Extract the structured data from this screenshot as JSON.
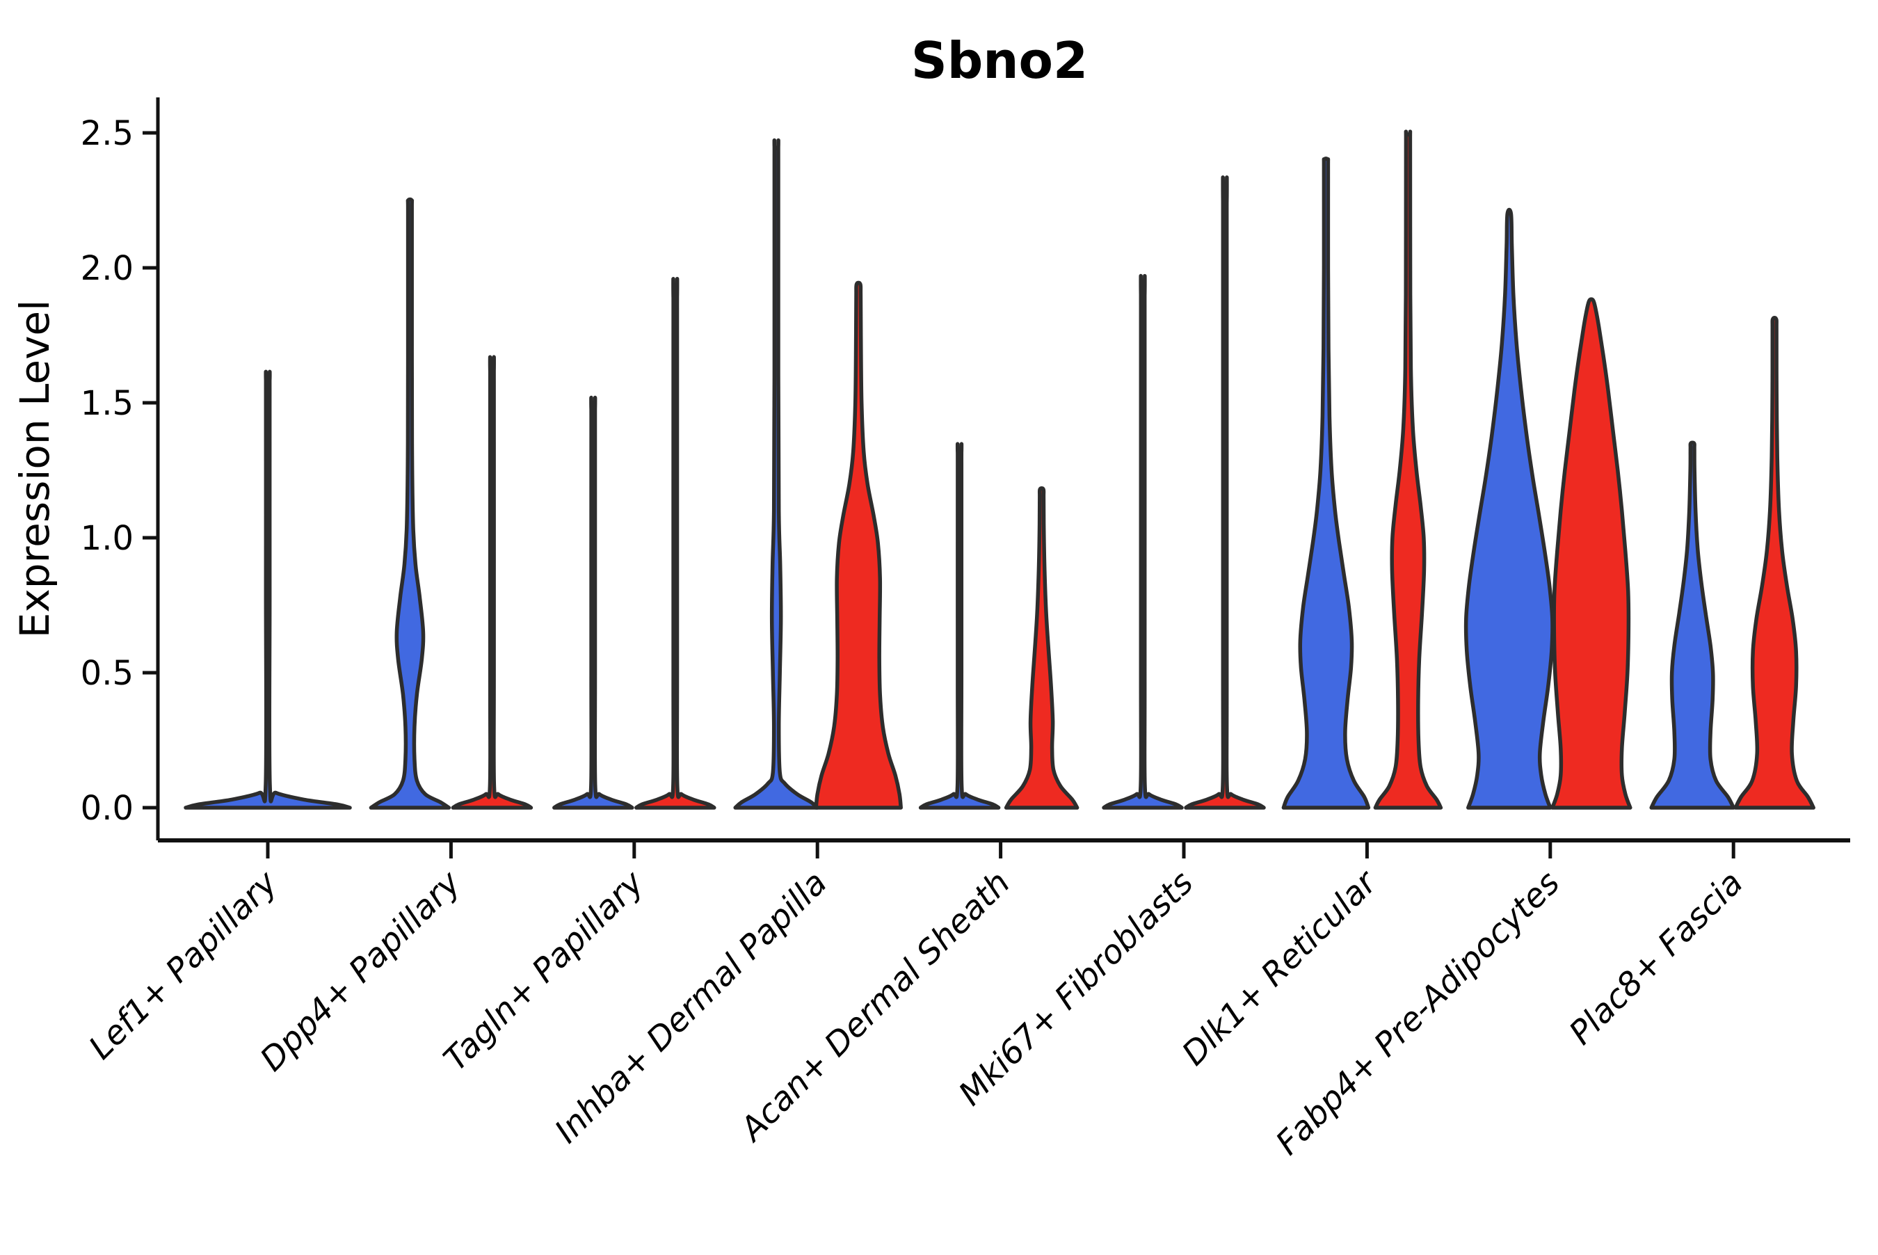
{
  "title": "Sbno2",
  "y_axis": {
    "label": "Expression Level",
    "ticks": [
      {
        "label": "2.5",
        "value": 2.5
      },
      {
        "label": "2.0",
        "value": 2.0
      },
      {
        "label": "1.5",
        "value": 1.5
      },
      {
        "label": "1.0",
        "value": 1.0
      },
      {
        "label": "0.5",
        "value": 0.5
      },
      {
        "label": "0.0",
        "value": 0.0
      }
    ]
  },
  "colors": {
    "blue": "#4169E1",
    "red": "#EE2A21",
    "outline": "#2D2D2D",
    "axis": "#111111",
    "text": "#000000",
    "background": "#FFFFFF"
  },
  "chart_data": {
    "type": "violin",
    "title": "Sbno2",
    "ylabel": "Expression Level",
    "ylim": [
      0,
      2.5
    ],
    "grid": false,
    "legend": "none",
    "categories": [
      "Lef1+ Papillary",
      "Dpp4+ Papillary",
      "Tagln+ Papillary",
      "Inhba+ Dermal Papilla",
      "Acan+ Dermal Sheath",
      "Mki67+ Fibroblasts",
      "Dlk1+ Reticular",
      "Fabp4+ Pre-Adipocytes",
      "Plac8+ Fascia"
    ],
    "series": [
      {
        "name": "group-blue",
        "color": "#4169E1",
        "max_expression": [
          1.58,
          2.25,
          1.47,
          2.44,
          1.31,
          1.89,
          2.4,
          2.2,
          1.35
        ]
      },
      {
        "name": "group-red",
        "color": "#EE2A21",
        "max_expression": [
          1.58,
          1.61,
          1.88,
          1.94,
          1.18,
          2.23,
          2.49,
          1.88,
          1.81
        ]
      }
    ],
    "notes": "Most mass of every violin sits at expression 0. Lef1+ Papillary renders as a single flat violin with one spike at the category center. Flat-spike violins: Dpp4 red, Tagln both, Acan blue, Mki67 both.",
    "violins": [
      {
        "cat": 0,
        "group": "single",
        "max": 1.58,
        "profile": [
          [
            0,
            118
          ],
          [
            0.012,
            100
          ],
          [
            0.03,
            52
          ],
          [
            0.055,
            12
          ],
          [
            0.085,
            3
          ],
          [
            0.8,
            2.7
          ],
          [
            1.55,
            2.7
          ],
          [
            1.58,
            2.4
          ]
        ]
      },
      {
        "cat": 1,
        "group": "blue",
        "max": 2.25,
        "profile": [
          [
            0,
            56
          ],
          [
            0.02,
            44
          ],
          [
            0.05,
            22
          ],
          [
            0.1,
            10
          ],
          [
            0.18,
            6.5
          ],
          [
            0.3,
            6.5
          ],
          [
            0.42,
            10
          ],
          [
            0.55,
            17
          ],
          [
            0.65,
            19
          ],
          [
            0.78,
            14
          ],
          [
            0.9,
            8
          ],
          [
            1.05,
            4.5
          ],
          [
            1.35,
            3
          ],
          [
            2.0,
            2.8
          ],
          [
            2.22,
            2.8
          ],
          [
            2.25,
            2.5
          ]
        ]
      },
      {
        "cat": 1,
        "group": "red",
        "max": 1.61,
        "profile": [
          [
            0,
            56
          ],
          [
            0.012,
            48
          ],
          [
            0.03,
            26
          ],
          [
            0.05,
            9
          ],
          [
            0.08,
            3
          ],
          [
            0.5,
            2.7
          ],
          [
            1.58,
            2.7
          ],
          [
            1.61,
            2.4
          ]
        ]
      },
      {
        "cat": 2,
        "group": "blue",
        "max": 1.47,
        "profile": [
          [
            0,
            56
          ],
          [
            0.012,
            48
          ],
          [
            0.03,
            26
          ],
          [
            0.05,
            9
          ],
          [
            0.08,
            3
          ],
          [
            0.5,
            2.7
          ],
          [
            1.44,
            2.7
          ],
          [
            1.47,
            2.4
          ]
        ]
      },
      {
        "cat": 2,
        "group": "red",
        "max": 1.88,
        "profile": [
          [
            0,
            56
          ],
          [
            0.012,
            48
          ],
          [
            0.03,
            26
          ],
          [
            0.05,
            9
          ],
          [
            0.08,
            3
          ],
          [
            0.5,
            2.7
          ],
          [
            1.85,
            2.7
          ],
          [
            1.88,
            2.4
          ]
        ]
      },
      {
        "cat": 3,
        "group": "blue",
        "max": 2.44,
        "profile": [
          [
            0,
            59
          ],
          [
            0.02,
            50
          ],
          [
            0.05,
            30
          ],
          [
            0.09,
            12
          ],
          [
            0.13,
            5
          ],
          [
            0.3,
            3.5
          ],
          [
            0.5,
            5
          ],
          [
            0.7,
            6.5
          ],
          [
            0.9,
            5.5
          ],
          [
            1.1,
            3.5
          ],
          [
            1.6,
            2.8
          ],
          [
            2.4,
            2.8
          ],
          [
            2.44,
            2.4
          ]
        ]
      },
      {
        "cat": 3,
        "group": "red",
        "max": 1.94,
        "profile": [
          [
            0,
            61
          ],
          [
            0.05,
            59
          ],
          [
            0.12,
            53
          ],
          [
            0.2,
            43
          ],
          [
            0.3,
            35
          ],
          [
            0.42,
            31
          ],
          [
            0.55,
            30
          ],
          [
            0.7,
            30.5
          ],
          [
            0.85,
            31
          ],
          [
            0.98,
            28
          ],
          [
            1.08,
            22
          ],
          [
            1.2,
            13
          ],
          [
            1.32,
            7.5
          ],
          [
            1.5,
            4.5
          ],
          [
            1.75,
            3.5
          ],
          [
            1.9,
            3.2
          ],
          [
            1.94,
            2.6
          ]
        ]
      },
      {
        "cat": 4,
        "group": "blue",
        "max": 1.31,
        "profile": [
          [
            0,
            56
          ],
          [
            0.012,
            48
          ],
          [
            0.03,
            26
          ],
          [
            0.05,
            9
          ],
          [
            0.08,
            3
          ],
          [
            0.5,
            2.7
          ],
          [
            1.28,
            2.7
          ],
          [
            1.31,
            2.4
          ]
        ]
      },
      {
        "cat": 4,
        "group": "red",
        "max": 1.18,
        "profile": [
          [
            0,
            51
          ],
          [
            0.03,
            44
          ],
          [
            0.08,
            27
          ],
          [
            0.14,
            17
          ],
          [
            0.22,
            15
          ],
          [
            0.32,
            16
          ],
          [
            0.45,
            13.5
          ],
          [
            0.58,
            10
          ],
          [
            0.72,
            6.5
          ],
          [
            0.88,
            4.2
          ],
          [
            1.05,
            3
          ],
          [
            1.15,
            2.8
          ],
          [
            1.18,
            2.4
          ]
        ]
      },
      {
        "cat": 5,
        "group": "blue",
        "max": 1.89,
        "profile": [
          [
            0,
            56
          ],
          [
            0.012,
            48
          ],
          [
            0.03,
            26
          ],
          [
            0.05,
            9
          ],
          [
            0.08,
            3
          ],
          [
            0.5,
            2.7
          ],
          [
            1.86,
            2.7
          ],
          [
            1.89,
            2.4
          ]
        ]
      },
      {
        "cat": 5,
        "group": "red",
        "max": 2.23,
        "profile": [
          [
            0,
            56
          ],
          [
            0.012,
            48
          ],
          [
            0.03,
            26
          ],
          [
            0.05,
            9
          ],
          [
            0.08,
            3
          ],
          [
            0.5,
            2.7
          ],
          [
            2.2,
            2.7
          ],
          [
            2.23,
            2.4
          ]
        ]
      },
      {
        "cat": 6,
        "group": "blue",
        "max": 2.4,
        "profile": [
          [
            0,
            61
          ],
          [
            0.04,
            55
          ],
          [
            0.1,
            40
          ],
          [
            0.18,
            30
          ],
          [
            0.28,
            27.5
          ],
          [
            0.4,
            31
          ],
          [
            0.52,
            36
          ],
          [
            0.62,
            37
          ],
          [
            0.74,
            33
          ],
          [
            0.86,
            26
          ],
          [
            0.98,
            19
          ],
          [
            1.1,
            13
          ],
          [
            1.25,
            8
          ],
          [
            1.45,
            5
          ],
          [
            1.7,
            3.6
          ],
          [
            2.0,
            3
          ],
          [
            2.36,
            3
          ],
          [
            2.4,
            2.5
          ]
        ]
      },
      {
        "cat": 6,
        "group": "red",
        "max": 2.49,
        "profile": [
          [
            0,
            47
          ],
          [
            0.03,
            41
          ],
          [
            0.08,
            27
          ],
          [
            0.15,
            18
          ],
          [
            0.25,
            15
          ],
          [
            0.4,
            14.5
          ],
          [
            0.55,
            16
          ],
          [
            0.72,
            20
          ],
          [
            0.88,
            23
          ],
          [
            1.0,
            22.5
          ],
          [
            1.12,
            18
          ],
          [
            1.25,
            12
          ],
          [
            1.4,
            7
          ],
          [
            1.6,
            4.2
          ],
          [
            1.9,
            3.2
          ],
          [
            2.45,
            3
          ],
          [
            2.49,
            2.5
          ]
        ]
      },
      {
        "cat": 7,
        "group": "blue",
        "max": 2.2,
        "profile": [
          [
            0,
            59
          ],
          [
            0.05,
            52
          ],
          [
            0.12,
            46
          ],
          [
            0.2,
            44
          ],
          [
            0.32,
            49
          ],
          [
            0.45,
            56
          ],
          [
            0.58,
            61
          ],
          [
            0.7,
            62
          ],
          [
            0.82,
            58
          ],
          [
            0.95,
            51
          ],
          [
            1.08,
            43
          ],
          [
            1.22,
            34
          ],
          [
            1.38,
            25
          ],
          [
            1.55,
            17
          ],
          [
            1.72,
            10.5
          ],
          [
            1.9,
            6
          ],
          [
            2.08,
            3.8
          ],
          [
            2.2,
            2.6
          ]
        ]
      },
      {
        "cat": 7,
        "group": "red",
        "max": 1.88,
        "profile": [
          [
            0,
            56
          ],
          [
            0.05,
            49
          ],
          [
            0.12,
            44
          ],
          [
            0.22,
            44
          ],
          [
            0.35,
            48
          ],
          [
            0.5,
            52
          ],
          [
            0.65,
            53.5
          ],
          [
            0.8,
            53
          ],
          [
            0.95,
            49
          ],
          [
            1.1,
            44
          ],
          [
            1.25,
            38
          ],
          [
            1.4,
            31
          ],
          [
            1.55,
            24
          ],
          [
            1.68,
            17
          ],
          [
            1.78,
            11
          ],
          [
            1.85,
            6
          ],
          [
            1.88,
            2.6
          ]
        ]
      },
      {
        "cat": 8,
        "group": "blue",
        "max": 1.35,
        "profile": [
          [
            0,
            59
          ],
          [
            0.04,
            51
          ],
          [
            0.1,
            34
          ],
          [
            0.18,
            26
          ],
          [
            0.28,
            26
          ],
          [
            0.4,
            29
          ],
          [
            0.5,
            29.5
          ],
          [
            0.6,
            26
          ],
          [
            0.72,
            19
          ],
          [
            0.84,
            12.5
          ],
          [
            0.96,
            7.5
          ],
          [
            1.1,
            4.5
          ],
          [
            1.25,
            3
          ],
          [
            1.33,
            2.8
          ],
          [
            1.35,
            2.4
          ]
        ]
      },
      {
        "cat": 8,
        "group": "red",
        "max": 1.81,
        "profile": [
          [
            0,
            56
          ],
          [
            0.04,
            48
          ],
          [
            0.1,
            32
          ],
          [
            0.2,
            25
          ],
          [
            0.32,
            27
          ],
          [
            0.45,
            31
          ],
          [
            0.58,
            31
          ],
          [
            0.7,
            26
          ],
          [
            0.82,
            18
          ],
          [
            0.95,
            11
          ],
          [
            1.1,
            6.5
          ],
          [
            1.3,
            4
          ],
          [
            1.55,
            3
          ],
          [
            1.77,
            2.9
          ],
          [
            1.81,
            2.4
          ]
        ]
      }
    ]
  }
}
